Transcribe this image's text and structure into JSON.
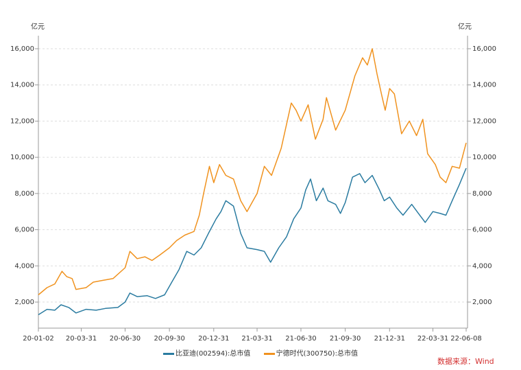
{
  "chart_data": {
    "type": "line",
    "unit_left": "亿元",
    "unit_right": "亿元",
    "ylim": [
      560,
      16720
    ],
    "yticks": [
      2000,
      4000,
      6000,
      8000,
      10000,
      12000,
      14000,
      16000
    ],
    "ytick_labels": [
      "2,000",
      "4,000",
      "6,000",
      "8,000",
      "10,000",
      "12,000",
      "14,000",
      "16,000"
    ],
    "xlim": [
      "2020-01-02",
      "2022-06-08"
    ],
    "xticks": [
      {
        "date": "2020-01-02",
        "label": "20-01-02"
      },
      {
        "date": "2020-03-31",
        "label": "20-03-31"
      },
      {
        "date": "2020-06-30",
        "label": "20-06-30"
      },
      {
        "date": "2020-09-30",
        "label": "20-09-30"
      },
      {
        "date": "2020-12-31",
        "label": "20-12-31"
      },
      {
        "date": "2021-03-31",
        "label": "21-03-31"
      },
      {
        "date": "2021-06-30",
        "label": "21-06-30"
      },
      {
        "date": "2021-09-30",
        "label": "21-09-30"
      },
      {
        "date": "2021-12-31",
        "label": "21-12-31"
      },
      {
        "date": "2022-03-31",
        "label": "22-03-31"
      },
      {
        "date": "2022-06-08",
        "label": "22-06-08"
      }
    ],
    "grid": true,
    "legend_position": "bottom",
    "source": "数据来源：Wind",
    "series": [
      {
        "name": "比亚迪(002594):总市值",
        "color": "#2a7ba0",
        "points": [
          [
            "2020-01-02",
            1300
          ],
          [
            "2020-01-20",
            1600
          ],
          [
            "2020-02-05",
            1550
          ],
          [
            "2020-02-18",
            1850
          ],
          [
            "2020-03-05",
            1700
          ],
          [
            "2020-03-20",
            1400
          ],
          [
            "2020-04-10",
            1600
          ],
          [
            "2020-05-01",
            1550
          ],
          [
            "2020-05-20",
            1650
          ],
          [
            "2020-06-15",
            1700
          ],
          [
            "2020-06-30",
            2000
          ],
          [
            "2020-07-10",
            2500
          ],
          [
            "2020-07-25",
            2300
          ],
          [
            "2020-08-15",
            2350
          ],
          [
            "2020-09-01",
            2200
          ],
          [
            "2020-09-20",
            2400
          ],
          [
            "2020-10-05",
            3100
          ],
          [
            "2020-10-20",
            3800
          ],
          [
            "2020-11-05",
            4800
          ],
          [
            "2020-11-20",
            4600
          ],
          [
            "2020-12-05",
            5000
          ],
          [
            "2020-12-20",
            5800
          ],
          [
            "2021-01-05",
            6600
          ],
          [
            "2021-01-15",
            7000
          ],
          [
            "2021-01-25",
            7600
          ],
          [
            "2021-02-10",
            7300
          ],
          [
            "2021-02-25",
            5800
          ],
          [
            "2021-03-10",
            5000
          ],
          [
            "2021-03-31",
            4900
          ],
          [
            "2021-04-15",
            4800
          ],
          [
            "2021-04-28",
            4200
          ],
          [
            "2021-05-15",
            5000
          ],
          [
            "2021-05-31",
            5600
          ],
          [
            "2021-06-15",
            6600
          ],
          [
            "2021-06-30",
            7200
          ],
          [
            "2021-07-10",
            8200
          ],
          [
            "2021-07-20",
            8800
          ],
          [
            "2021-08-01",
            7600
          ],
          [
            "2021-08-15",
            8300
          ],
          [
            "2021-08-25",
            7600
          ],
          [
            "2021-09-10",
            7400
          ],
          [
            "2021-09-20",
            6900
          ],
          [
            "2021-09-30",
            7500
          ],
          [
            "2021-10-15",
            8900
          ],
          [
            "2021-10-30",
            9100
          ],
          [
            "2021-11-10",
            8600
          ],
          [
            "2021-11-25",
            9000
          ],
          [
            "2021-12-10",
            8200
          ],
          [
            "2021-12-20",
            7600
          ],
          [
            "2021-12-31",
            7800
          ],
          [
            "2022-01-15",
            7200
          ],
          [
            "2022-01-28",
            6800
          ],
          [
            "2022-02-15",
            7400
          ],
          [
            "2022-03-01",
            6900
          ],
          [
            "2022-03-15",
            6400
          ],
          [
            "2022-03-31",
            7000
          ],
          [
            "2022-04-15",
            6900
          ],
          [
            "2022-04-27",
            6800
          ],
          [
            "2022-05-10",
            7600
          ],
          [
            "2022-05-25",
            8500
          ],
          [
            "2022-06-08",
            9400
          ]
        ]
      },
      {
        "name": "宁德时代(300750):总市值",
        "color": "#f0921e",
        "points": [
          [
            "2020-01-02",
            2400
          ],
          [
            "2020-01-20",
            2800
          ],
          [
            "2020-02-05",
            3000
          ],
          [
            "2020-02-20",
            3700
          ],
          [
            "2020-03-01",
            3400
          ],
          [
            "2020-03-12",
            3300
          ],
          [
            "2020-03-20",
            2700
          ],
          [
            "2020-04-10",
            2800
          ],
          [
            "2020-04-25",
            3100
          ],
          [
            "2020-05-15",
            3200
          ],
          [
            "2020-06-05",
            3300
          ],
          [
            "2020-06-30",
            3900
          ],
          [
            "2020-07-10",
            4800
          ],
          [
            "2020-07-25",
            4400
          ],
          [
            "2020-08-10",
            4500
          ],
          [
            "2020-08-25",
            4300
          ],
          [
            "2020-09-10",
            4600
          ],
          [
            "2020-09-30",
            5000
          ],
          [
            "2020-10-15",
            5400
          ],
          [
            "2020-11-01",
            5700
          ],
          [
            "2020-11-20",
            5900
          ],
          [
            "2020-12-01",
            6800
          ],
          [
            "2020-12-10",
            8000
          ],
          [
            "2020-12-22",
            9500
          ],
          [
            "2020-12-31",
            8600
          ],
          [
            "2021-01-12",
            9600
          ],
          [
            "2021-01-25",
            9000
          ],
          [
            "2021-02-10",
            8800
          ],
          [
            "2021-02-25",
            7600
          ],
          [
            "2021-03-10",
            7000
          ],
          [
            "2021-03-31",
            8000
          ],
          [
            "2021-04-15",
            9500
          ],
          [
            "2021-04-30",
            9000
          ],
          [
            "2021-05-20",
            10500
          ],
          [
            "2021-06-10",
            13000
          ],
          [
            "2021-06-20",
            12600
          ],
          [
            "2021-06-30",
            12000
          ],
          [
            "2021-07-15",
            12900
          ],
          [
            "2021-07-30",
            11000
          ],
          [
            "2021-08-15",
            12100
          ],
          [
            "2021-08-22",
            13300
          ],
          [
            "2021-09-10",
            11500
          ],
          [
            "2021-09-30",
            12600
          ],
          [
            "2021-10-20",
            14500
          ],
          [
            "2021-11-05",
            15500
          ],
          [
            "2021-11-15",
            15100
          ],
          [
            "2021-11-25",
            16000
          ],
          [
            "2021-12-05",
            14600
          ],
          [
            "2021-12-15",
            13400
          ],
          [
            "2021-12-22",
            12600
          ],
          [
            "2021-12-31",
            13800
          ],
          [
            "2022-01-10",
            13500
          ],
          [
            "2022-01-25",
            11300
          ],
          [
            "2022-02-10",
            12000
          ],
          [
            "2022-02-25",
            11200
          ],
          [
            "2022-03-10",
            12100
          ],
          [
            "2022-03-20",
            10200
          ],
          [
            "2022-04-05",
            9600
          ],
          [
            "2022-04-15",
            8900
          ],
          [
            "2022-04-27",
            8600
          ],
          [
            "2022-05-10",
            9500
          ],
          [
            "2022-05-25",
            9400
          ],
          [
            "2022-06-08",
            10800
          ]
        ]
      }
    ]
  }
}
